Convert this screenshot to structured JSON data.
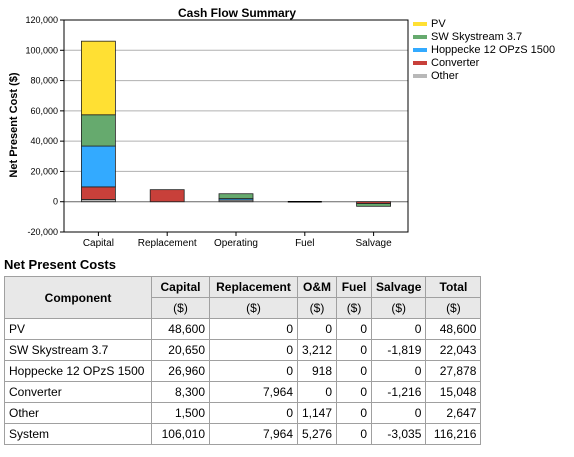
{
  "chart_data": {
    "type": "bar",
    "title": "Cash Flow Summary",
    "ylabel": "Net Present Cost ($)",
    "xlabel": "",
    "categories": [
      "Capital",
      "Replacement",
      "Operating",
      "Fuel",
      "Salvage"
    ],
    "ylim": [
      -20000,
      120000
    ],
    "yticks": [
      -20000,
      0,
      20000,
      40000,
      60000,
      80000,
      100000,
      120000
    ],
    "ytick_labels": [
      "-20,000",
      "0",
      "20,000",
      "40,000",
      "60,000",
      "80,000",
      "100,000",
      "120,000"
    ],
    "grid": true,
    "legend_position": "right",
    "stacked": true,
    "series": [
      {
        "name": "PV",
        "color": "#ffe033",
        "values": [
          48600,
          0,
          0,
          0,
          0
        ]
      },
      {
        "name": "SW Skystream 3.7",
        "color": "#66aa6e",
        "values": [
          20650,
          0,
          3212,
          0,
          -1819
        ]
      },
      {
        "name": "Hoppecke 12 OPzS 1500",
        "color": "#33aaff",
        "values": [
          26960,
          0,
          918,
          0,
          0
        ]
      },
      {
        "name": "Converter",
        "color": "#c8403a",
        "values": [
          8300,
          7964,
          0,
          0,
          -1216
        ]
      },
      {
        "name": "Other",
        "color": "#b8b8b8",
        "values": [
          1500,
          0,
          1147,
          0,
          0
        ]
      }
    ]
  },
  "table": {
    "title": "Net Present Costs",
    "headers": {
      "component": "Component",
      "capital": "Capital",
      "replacement": "Replacement",
      "om": "O&M",
      "fuel": "Fuel",
      "salvage": "Salvage",
      "total": "Total"
    },
    "units": {
      "capital": "($)",
      "replacement": "($)",
      "om": "($)",
      "fuel": "($)",
      "salvage": "($)",
      "total": "($)"
    },
    "rows": [
      {
        "component": "PV",
        "capital": "48,600",
        "replacement": "0",
        "om": "0",
        "fuel": "0",
        "salvage": "0",
        "total": "48,600"
      },
      {
        "component": "SW Skystream 3.7",
        "capital": "20,650",
        "replacement": "0",
        "om": "3,212",
        "fuel": "0",
        "salvage": "-1,819",
        "total": "22,043"
      },
      {
        "component": "Hoppecke 12 OPzS 1500",
        "capital": "26,960",
        "replacement": "0",
        "om": "918",
        "fuel": "0",
        "salvage": "0",
        "total": "27,878"
      },
      {
        "component": "Converter",
        "capital": "8,300",
        "replacement": "7,964",
        "om": "0",
        "fuel": "0",
        "salvage": "-1,216",
        "total": "15,048"
      },
      {
        "component": "Other",
        "capital": "1,500",
        "replacement": "0",
        "om": "1,147",
        "fuel": "0",
        "salvage": "0",
        "total": "2,647"
      },
      {
        "component": "System",
        "capital": "106,010",
        "replacement": "7,964",
        "om": "5,276",
        "fuel": "0",
        "salvage": "-3,035",
        "total": "116,216"
      }
    ]
  }
}
